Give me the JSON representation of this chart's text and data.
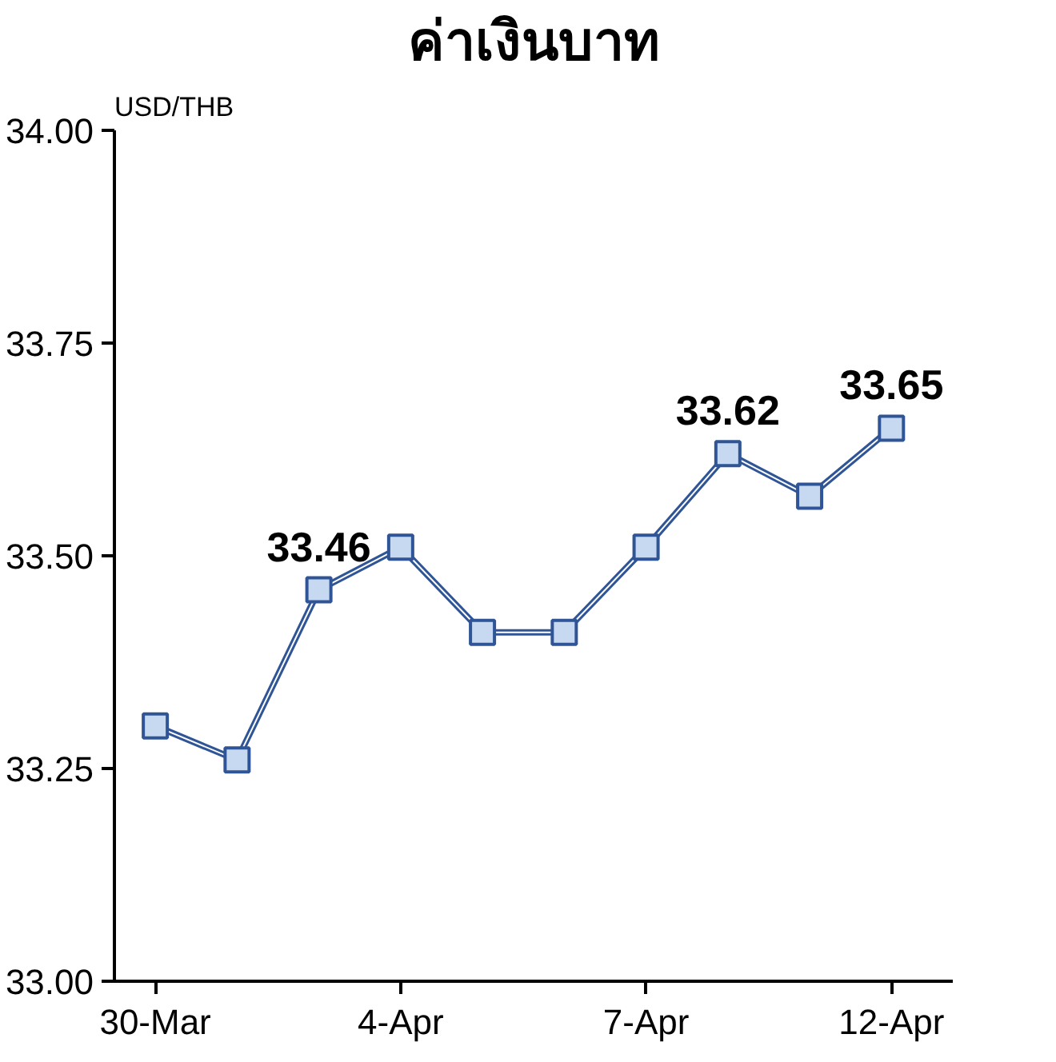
{
  "chart_data": {
    "type": "line",
    "title": "ค่าเงินบาท",
    "ylabel": "USD/THB",
    "categories": [
      "30-Mar",
      null,
      null,
      "4-Apr",
      null,
      null,
      "7-Apr",
      null,
      null,
      "12-Apr"
    ],
    "ylim": [
      33.0,
      34.0
    ],
    "yticks": [
      {
        "value": 33.0,
        "label": "33.00"
      },
      {
        "value": 33.25,
        "label": "33.25"
      },
      {
        "value": 33.5,
        "label": "33.50"
      },
      {
        "value": 33.75,
        "label": "33.75"
      },
      {
        "value": 34.0,
        "label": "34.00"
      }
    ],
    "series": [
      {
        "color": "#2f5597",
        "values": [
          33.3,
          33.26,
          33.46,
          33.51,
          33.41,
          33.41,
          33.51,
          33.62,
          33.57,
          33.65
        ],
        "value_labels": [
          null,
          null,
          "33.46",
          null,
          null,
          null,
          null,
          "33.62",
          null,
          "33.65"
        ]
      }
    ],
    "marker": "square",
    "grid": false
  }
}
